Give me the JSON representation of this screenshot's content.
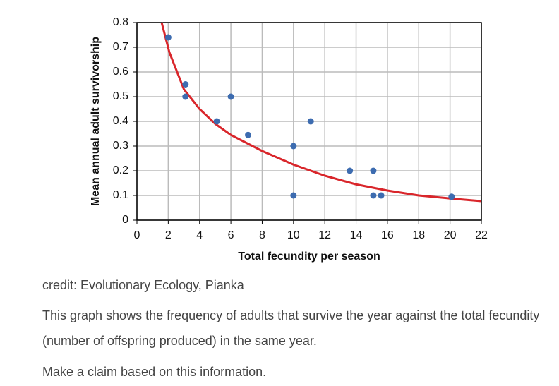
{
  "chart_data": {
    "type": "scatter",
    "x_label": "Total fecundity per season",
    "y_label": "Mean annual adult survivorship",
    "x": [
      2,
      3.1,
      3.1,
      5.1,
      6,
      7.1,
      10,
      10,
      11.1,
      13.6,
      15.1,
      15.1,
      15.6,
      20.1
    ],
    "values": [
      0.74,
      0.55,
      0.5,
      0.4,
      0.5,
      0.345,
      0.3,
      0.1,
      0.4,
      0.2,
      0.2,
      0.1,
      0.1,
      0.095
    ],
    "color": "#3d6cb0",
    "fit": {
      "color": "#d9262b",
      "x": [
        1.58,
        2.07,
        3,
        4,
        5,
        6,
        8,
        10,
        12,
        14,
        16,
        18,
        20,
        22
      ],
      "y": [
        0.8,
        0.68,
        0.53,
        0.45,
        0.39,
        0.345,
        0.28,
        0.225,
        0.18,
        0.145,
        0.12,
        0.1,
        0.088,
        0.077
      ]
    },
    "xlim": [
      0,
      22
    ],
    "ylim": [
      0,
      0.8
    ],
    "xticks": [
      0,
      2,
      4,
      6,
      8,
      10,
      12,
      14,
      16,
      18,
      20,
      22
    ],
    "yticks": [
      0,
      0.1,
      0.2,
      0.3,
      0.4,
      0.5,
      0.6,
      0.7,
      0.8
    ],
    "grid": true
  },
  "text": {
    "credit": "credit: Evolutionary Ecology, Pianka",
    "description": "This graph shows the frequency of adults that survive the year against the total fecundity (number of offspring produced) in the same year.",
    "prompt": "Make a claim based on this information."
  }
}
